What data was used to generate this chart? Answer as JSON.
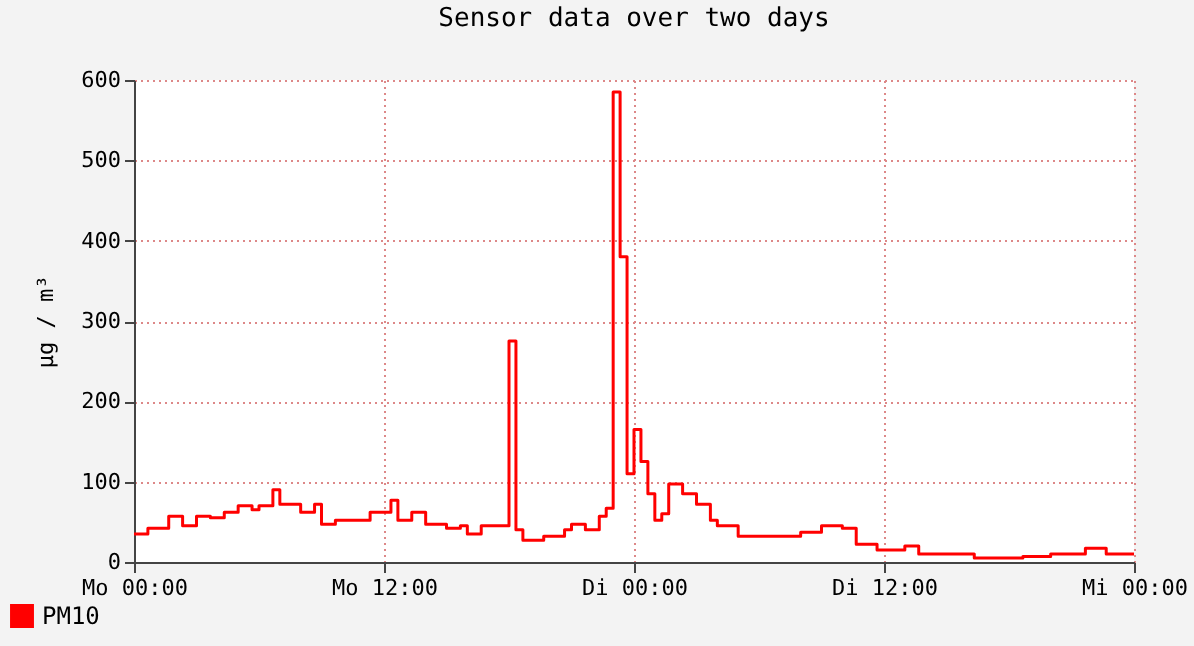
{
  "chart_data": {
    "type": "step",
    "title": "Sensor data over two days",
    "ylabel": "µg / m³",
    "categories": [
      "Mo 00:00",
      null,
      null,
      null,
      null,
      null,
      null,
      null,
      null,
      null,
      null,
      null,
      null,
      null,
      null,
      null,
      null,
      null,
      null,
      null,
      null,
      null,
      null,
      null,
      null,
      null,
      null,
      null,
      null,
      null,
      null,
      null,
      null,
      null,
      null,
      null,
      "Mo 12:00",
      null,
      null,
      null,
      null,
      null,
      null,
      null,
      null,
      null,
      null,
      null,
      null,
      null,
      null,
      null,
      null,
      null,
      null,
      null,
      null,
      null,
      null,
      null,
      null,
      null,
      null,
      null,
      null,
      null,
      null,
      null,
      null,
      null,
      null,
      null,
      "Di 00:00",
      null,
      null,
      null,
      null,
      null,
      null,
      null,
      null,
      null,
      null,
      null,
      null,
      null,
      null,
      null,
      null,
      null,
      null,
      null,
      null,
      null,
      null,
      null,
      null,
      null,
      null,
      null,
      null,
      null,
      null,
      null,
      null,
      null,
      null,
      null,
      "Di 12:00",
      null,
      null,
      null,
      null,
      null,
      null,
      null,
      null,
      null,
      null,
      null,
      null,
      null,
      null,
      null,
      null,
      null,
      null,
      null,
      null,
      null,
      null,
      null,
      null,
      null,
      null,
      null,
      null,
      null,
      null,
      null,
      null,
      null,
      null,
      null,
      "Mi 00:00"
    ],
    "series": [
      {
        "name": "PM10",
        "color": "#ff0000",
        "values": [
          35,
          35,
          42,
          42,
          42,
          57,
          57,
          45,
          45,
          57,
          57,
          55,
          55,
          62,
          62,
          70,
          70,
          65,
          70,
          70,
          90,
          72,
          72,
          72,
          62,
          62,
          72,
          47,
          47,
          52,
          52,
          52,
          52,
          52,
          62,
          62,
          62,
          77,
          52,
          52,
          62,
          62,
          47,
          47,
          47,
          42,
          42,
          45,
          35,
          35,
          45,
          45,
          45,
          45,
          275,
          40,
          27,
          27,
          27,
          32,
          32,
          32,
          40,
          47,
          47,
          40,
          40,
          57,
          67,
          585,
          380,
          110,
          165,
          125,
          85,
          52,
          60,
          97,
          97,
          85,
          85,
          72,
          72,
          52,
          45,
          45,
          45,
          32,
          32,
          32,
          32,
          32,
          32,
          32,
          32,
          32,
          37,
          37,
          37,
          45,
          45,
          45,
          42,
          42,
          22,
          22,
          22,
          15,
          15,
          15,
          15,
          20,
          20,
          10,
          10,
          10,
          10,
          10,
          10,
          10,
          10,
          5,
          5,
          5,
          5,
          5,
          5,
          5,
          7,
          7,
          7,
          7,
          10,
          10,
          10,
          10,
          10,
          17,
          17,
          17,
          10,
          10,
          10,
          10,
          10
        ]
      }
    ],
    "ylim": [
      0,
      600
    ],
    "yticks": [
      0,
      100,
      200,
      300,
      400,
      500,
      600
    ],
    "grid": true,
    "legend": "bottom left"
  }
}
